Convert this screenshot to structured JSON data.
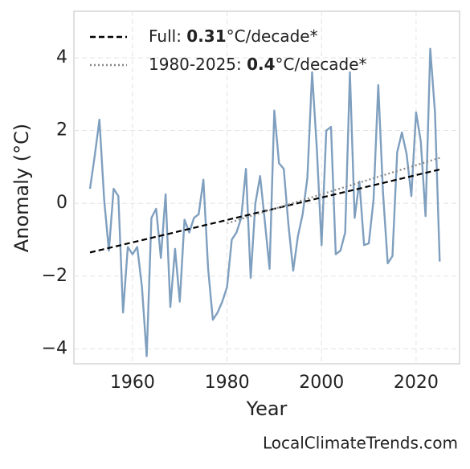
{
  "chart_data": {
    "type": "line",
    "xlabel": "Year",
    "ylabel": "Anomaly (°C)",
    "source": "LocalClimateTrends.com",
    "xlim": [
      1947.6,
      2029.2
    ],
    "ylim": [
      -4.41,
      5.28
    ],
    "xticks": [
      1960,
      1980,
      2000,
      2020
    ],
    "yticks": [
      {
        "value": -4,
        "label": "−4"
      },
      {
        "value": -2,
        "label": "−2"
      },
      0,
      2,
      4
    ],
    "grid": true,
    "legend": "upper-left",
    "series": [
      {
        "color": "#7f9fbf",
        "style": "solid",
        "x": [
          1951,
          1952,
          1953,
          1954,
          1955,
          1956,
          1957,
          1958,
          1959,
          1960,
          1961,
          1962,
          1963,
          1964,
          1965,
          1966,
          1967,
          1968,
          1969,
          1970,
          1971,
          1972,
          1973,
          1974,
          1975,
          1976,
          1977,
          1978,
          1979,
          1980,
          1981,
          1982,
          1983,
          1984,
          1985,
          1986,
          1987,
          1988,
          1989,
          1990,
          1991,
          1992,
          1993,
          1994,
          1995,
          1996,
          1997,
          1998,
          1999,
          2000,
          2001,
          2002,
          2003,
          2004,
          2005,
          2006,
          2007,
          2008,
          2009,
          2010,
          2011,
          2012,
          2013,
          2014,
          2015,
          2016,
          2017,
          2018,
          2019,
          2020,
          2021,
          2022,
          2023,
          2024,
          2025
        ],
        "values": [
          0.4,
          1.3,
          2.3,
          0.1,
          -1.3,
          0.4,
          0.2,
          -3.0,
          -1.2,
          -1.4,
          -1.2,
          -2.3,
          -4.2,
          -0.4,
          -0.15,
          -1.5,
          0.25,
          -2.85,
          -1.25,
          -2.7,
          -0.45,
          -0.8,
          -0.4,
          -0.3,
          0.65,
          -1.8,
          -3.2,
          -3.0,
          -2.7,
          -2.3,
          -1.0,
          -0.8,
          -0.4,
          0.95,
          -2.05,
          0.0,
          0.75,
          -0.5,
          -1.8,
          2.55,
          1.1,
          0.95,
          -0.6,
          -1.85,
          -0.9,
          -0.3,
          0.7,
          3.6,
          1.5,
          -1.15,
          2.0,
          2.1,
          -1.4,
          -1.3,
          -0.8,
          3.6,
          -0.4,
          0.6,
          -1.15,
          -1.1,
          0.1,
          3.25,
          0.3,
          -1.65,
          -1.45,
          1.4,
          1.95,
          1.35,
          0.2,
          2.5,
          1.7,
          -0.35,
          4.25,
          2.5,
          -1.6
        ]
      },
      {
        "name_parts": [
          "Full: ",
          "0.31",
          "°C/decade*"
        ],
        "color": "#000000",
        "style": "dashed",
        "x": [
          1951,
          2025
        ],
        "values": [
          -1.35,
          0.93
        ]
      },
      {
        "name_parts": [
          "1980-2025: ",
          "0.4",
          "°C/decade*"
        ],
        "color": "#888888",
        "style": "dotted",
        "x": [
          1980,
          2025
        ],
        "values": [
          -0.55,
          1.25
        ]
      }
    ]
  }
}
